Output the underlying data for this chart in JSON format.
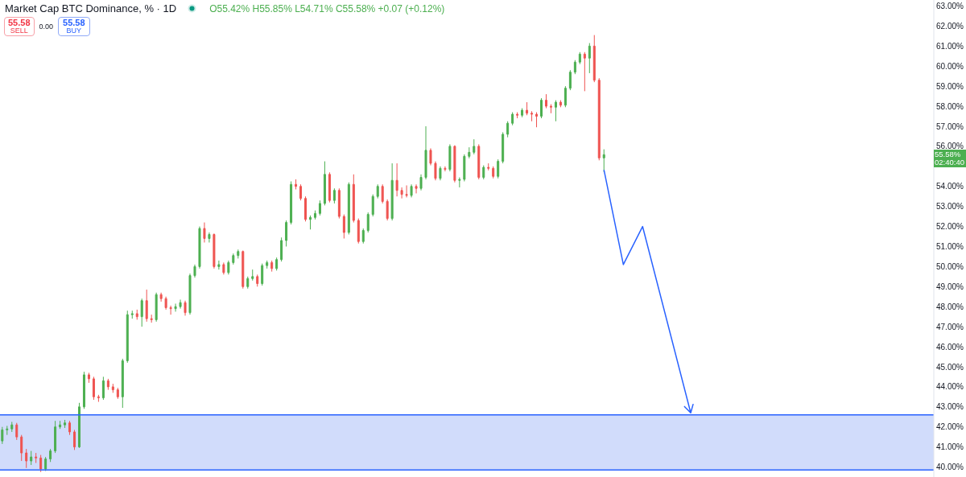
{
  "chart_data": {
    "type": "candlestick",
    "title": "Market Cap BTC Dominance, % · 1D",
    "subtitle": "O55.42% H55.85% L54.71% C55.58% +0.07 (+0.12%)",
    "categories": [
      null,
      null,
      null,
      null,
      null,
      null,
      null,
      null,
      null,
      null,
      null,
      null,
      null,
      null,
      null,
      null,
      null,
      null,
      null,
      null,
      null,
      null,
      null,
      null,
      null,
      null,
      null,
      null,
      null,
      null,
      null,
      null,
      null,
      null,
      null,
      null,
      null,
      null,
      null,
      null,
      null,
      null,
      null,
      null,
      null,
      null,
      null,
      null,
      null,
      null,
      null,
      null,
      null,
      null,
      null,
      null,
      null,
      null,
      null,
      null,
      null,
      null,
      null,
      null,
      null,
      null,
      null,
      null,
      null,
      null,
      null,
      null,
      null,
      null,
      null,
      null,
      null,
      null,
      null,
      null,
      null,
      null,
      null,
      null,
      null,
      null,
      null,
      null,
      null,
      null,
      null,
      null,
      null,
      null,
      null,
      null,
      null,
      null,
      null,
      null,
      null,
      null,
      null,
      null,
      null,
      null,
      null,
      null,
      null,
      null,
      null,
      null,
      null,
      null,
      null,
      null,
      null,
      null,
      null,
      null,
      null,
      null,
      null,
      null,
      null,
      null,
      null,
      null,
      null,
      null,
      null,
      null,
      null,
      null,
      null,
      null,
      null,
      null,
      null,
      null,
      null,
      null,
      null,
      null,
      null,
      null,
      null,
      null,
      null,
      null,
      null,
      null,
      null,
      null,
      null,
      null,
      null,
      null,
      null,
      null,
      null,
      null,
      null,
      null,
      null,
      null,
      null,
      null,
      null,
      null,
      null,
      null,
      null,
      null,
      null,
      null,
      null,
      null,
      null,
      null,
      null,
      null,
      null,
      null,
      null,
      null,
      null,
      null,
      null,
      null,
      null,
      null,
      null,
      null
    ],
    "ohlc": [
      [
        41.3,
        42.0,
        41.15,
        41.85
      ],
      [
        41.85,
        42.05,
        41.6,
        41.9
      ],
      [
        41.9,
        42.25,
        41.75,
        42.1
      ],
      [
        42.1,
        42.2,
        41.35,
        41.5
      ],
      [
        41.5,
        41.6,
        40.3,
        40.7
      ],
      [
        40.7,
        40.9,
        39.95,
        40.3
      ],
      [
        40.3,
        40.8,
        40.1,
        40.5
      ],
      [
        40.5,
        40.7,
        40.2,
        40.45
      ],
      [
        40.45,
        40.6,
        39.75,
        39.9
      ],
      [
        39.9,
        40.5,
        39.8,
        40.4
      ],
      [
        40.4,
        40.9,
        40.25,
        40.8
      ],
      [
        40.8,
        42.3,
        40.7,
        42.0
      ],
      [
        42.0,
        42.3,
        41.9,
        42.1
      ],
      [
        42.1,
        42.35,
        41.95,
        42.2
      ],
      [
        42.2,
        42.3,
        41.6,
        41.75
      ],
      [
        41.75,
        41.85,
        40.85,
        41.0
      ],
      [
        41.0,
        43.2,
        40.95,
        43.0
      ],
      [
        43.0,
        44.75,
        42.9,
        44.6
      ],
      [
        44.6,
        44.7,
        44.2,
        44.4
      ],
      [
        44.4,
        44.5,
        43.35,
        43.5
      ],
      [
        43.5,
        43.6,
        43.25,
        43.45
      ],
      [
        43.45,
        44.5,
        43.35,
        44.3
      ],
      [
        44.3,
        44.4,
        43.85,
        44.0
      ],
      [
        44.0,
        44.15,
        43.7,
        43.85
      ],
      [
        43.85,
        43.95,
        43.4,
        43.5
      ],
      [
        43.5,
        45.4,
        42.95,
        45.3
      ],
      [
        45.3,
        47.8,
        45.2,
        47.6
      ],
      [
        47.6,
        47.8,
        47.4,
        47.65
      ],
      [
        47.65,
        47.85,
        47.35,
        47.5
      ],
      [
        47.5,
        48.4,
        47.0,
        48.3
      ],
      [
        48.3,
        48.85,
        47.25,
        47.4
      ],
      [
        47.4,
        47.6,
        47.2,
        47.35
      ],
      [
        47.35,
        48.7,
        47.25,
        48.6
      ],
      [
        48.6,
        48.7,
        48.25,
        48.4
      ],
      [
        48.4,
        48.5,
        47.85,
        47.95
      ],
      [
        47.95,
        48.05,
        47.6,
        47.9
      ],
      [
        47.9,
        48.15,
        47.75,
        48.0
      ],
      [
        48.0,
        48.35,
        47.9,
        48.2
      ],
      [
        48.2,
        48.3,
        47.55,
        47.7
      ],
      [
        47.7,
        49.65,
        47.6,
        49.55
      ],
      [
        49.55,
        50.1,
        49.45,
        50.0
      ],
      [
        50.0,
        52.0,
        49.9,
        51.9
      ],
      [
        51.9,
        52.2,
        51.2,
        51.4
      ],
      [
        51.4,
        51.7,
        51.2,
        51.6
      ],
      [
        51.6,
        51.65,
        49.9,
        50.0
      ],
      [
        50.0,
        50.3,
        49.85,
        50.1
      ],
      [
        50.1,
        50.2,
        49.6,
        49.7
      ],
      [
        49.7,
        50.3,
        49.6,
        50.2
      ],
      [
        50.2,
        50.65,
        50.1,
        50.55
      ],
      [
        50.55,
        50.85,
        50.4,
        50.75
      ],
      [
        50.75,
        50.8,
        48.9,
        49.0
      ],
      [
        49.0,
        49.5,
        48.9,
        49.4
      ],
      [
        49.4,
        49.85,
        49.3,
        49.5
      ],
      [
        49.5,
        49.6,
        49.0,
        49.15
      ],
      [
        49.15,
        50.15,
        49.05,
        50.05
      ],
      [
        50.05,
        50.3,
        49.9,
        50.2
      ],
      [
        50.2,
        50.3,
        49.75,
        49.9
      ],
      [
        49.9,
        50.45,
        49.8,
        50.35
      ],
      [
        50.35,
        51.45,
        50.25,
        51.3
      ],
      [
        51.3,
        52.3,
        51.0,
        52.2
      ],
      [
        52.2,
        54.25,
        52.1,
        54.1
      ],
      [
        54.1,
        54.35,
        53.85,
        54.0
      ],
      [
        54.0,
        54.1,
        53.3,
        53.4
      ],
      [
        53.4,
        53.5,
        52.25,
        52.35
      ],
      [
        52.35,
        52.55,
        51.85,
        52.45
      ],
      [
        52.45,
        52.8,
        52.35,
        52.65
      ],
      [
        52.65,
        53.3,
        52.55,
        53.15
      ],
      [
        53.15,
        55.25,
        53.05,
        54.6
      ],
      [
        54.6,
        54.7,
        53.2,
        53.3
      ],
      [
        53.3,
        53.9,
        53.15,
        53.8
      ],
      [
        53.8,
        53.9,
        52.4,
        52.5
      ],
      [
        52.5,
        52.6,
        51.4,
        51.7
      ],
      [
        51.7,
        54.2,
        51.6,
        54.1
      ],
      [
        54.1,
        54.6,
        52.2,
        52.3
      ],
      [
        52.3,
        52.4,
        51.15,
        51.25
      ],
      [
        51.25,
        51.9,
        51.15,
        51.8
      ],
      [
        51.8,
        52.7,
        51.7,
        52.6
      ],
      [
        52.6,
        53.6,
        52.5,
        53.5
      ],
      [
        53.5,
        54.1,
        53.4,
        54.0
      ],
      [
        54.0,
        54.1,
        53.15,
        53.25
      ],
      [
        53.25,
        53.35,
        52.3,
        52.4
      ],
      [
        52.4,
        55.15,
        52.3,
        54.3
      ],
      [
        54.3,
        55.15,
        53.5,
        53.8
      ],
      [
        53.8,
        53.95,
        53.4,
        53.6
      ],
      [
        53.6,
        54.05,
        53.45,
        53.55
      ],
      [
        53.55,
        54.1,
        53.45,
        54.0
      ],
      [
        54.0,
        54.1,
        53.65,
        53.9
      ],
      [
        53.9,
        54.6,
        53.8,
        54.45
      ],
      [
        54.45,
        57.0,
        54.35,
        55.8
      ],
      [
        55.8,
        55.9,
        55.05,
        55.15
      ],
      [
        55.15,
        55.25,
        54.3,
        54.4
      ],
      [
        54.4,
        55.0,
        54.3,
        54.9
      ],
      [
        54.9,
        55.0,
        54.75,
        54.85
      ],
      [
        54.85,
        56.1,
        54.75,
        56.0
      ],
      [
        56.0,
        56.05,
        54.2,
        54.3
      ],
      [
        54.3,
        54.45,
        53.95,
        54.35
      ],
      [
        54.35,
        55.6,
        54.25,
        55.5
      ],
      [
        55.5,
        55.95,
        55.4,
        55.7
      ],
      [
        55.7,
        56.35,
        55.6,
        56.0
      ],
      [
        56.0,
        56.1,
        54.35,
        54.45
      ],
      [
        54.45,
        55.05,
        54.35,
        54.95
      ],
      [
        54.95,
        55.15,
        54.8,
        54.9
      ],
      [
        54.9,
        55.0,
        54.4,
        54.5
      ],
      [
        54.5,
        55.35,
        54.4,
        55.25
      ],
      [
        55.25,
        56.7,
        55.15,
        56.6
      ],
      [
        56.6,
        57.25,
        56.45,
        57.15
      ],
      [
        57.15,
        57.7,
        57.05,
        57.6
      ],
      [
        57.6,
        57.7,
        57.4,
        57.55
      ],
      [
        57.55,
        57.9,
        57.45,
        57.8
      ],
      [
        57.8,
        58.2,
        57.55,
        57.65
      ],
      [
        57.65,
        57.75,
        57.25,
        57.6
      ],
      [
        57.6,
        57.7,
        56.95,
        57.5
      ],
      [
        57.5,
        58.4,
        57.4,
        58.3
      ],
      [
        58.3,
        58.6,
        57.9,
        58.0
      ],
      [
        58.0,
        58.1,
        57.65,
        57.95
      ],
      [
        57.95,
        58.3,
        57.25,
        58.2
      ],
      [
        58.2,
        58.3,
        57.95,
        58.05
      ],
      [
        58.05,
        59.0,
        57.95,
        58.9
      ],
      [
        58.9,
        59.8,
        58.8,
        59.7
      ],
      [
        59.7,
        60.3,
        59.6,
        60.2
      ],
      [
        60.2,
        60.7,
        60.1,
        60.6
      ],
      [
        60.6,
        60.7,
        58.75,
        60.4
      ],
      [
        60.4,
        61.15,
        59.65,
        61.0
      ],
      [
        61.0,
        61.55,
        59.2,
        59.3
      ],
      [
        59.3,
        59.4,
        55.3,
        55.42
      ],
      [
        55.42,
        55.85,
        54.71,
        55.58
      ],
      null,
      null,
      null,
      null,
      null,
      null,
      null,
      null,
      null,
      null,
      null,
      null,
      null,
      null,
      null,
      null,
      null,
      null,
      null,
      null,
      null,
      null,
      null,
      null,
      null,
      null,
      null,
      null,
      null,
      null,
      null,
      null,
      null,
      null,
      null,
      null,
      null,
      null,
      null,
      null,
      null,
      null,
      null,
      null,
      null,
      null,
      null,
      null,
      null,
      null,
      null,
      null,
      null,
      null,
      null,
      null,
      null,
      null,
      null,
      null,
      null,
      null,
      null,
      null,
      null,
      null,
      null,
      null
    ],
    "colors": [
      "#4caf50",
      "#4caf50",
      "#4caf50",
      "#ef5350",
      "#ef5350",
      "#ef5350",
      "#4caf50",
      "#ef5350",
      "#ef5350",
      "#4caf50",
      "#4caf50",
      "#4caf50",
      "#4caf50",
      "#4caf50",
      "#ef5350",
      "#ef5350",
      "#4caf50",
      "#4caf50",
      "#ef5350",
      "#ef5350",
      "#ef5350",
      "#4caf50",
      "#ef5350",
      "#ef5350",
      "#ef5350",
      "#4caf50",
      "#4caf50",
      "#4caf50",
      "#ef5350",
      "#4caf50",
      "#ef5350",
      "#ef5350",
      "#4caf50",
      "#ef5350",
      "#ef5350",
      "#ef5350",
      "#4caf50",
      "#4caf50",
      "#ef5350",
      "#4caf50",
      "#4caf50",
      "#4caf50",
      "#ef5350",
      "#4caf50",
      "#ef5350",
      "#4caf50",
      "#ef5350",
      "#4caf50",
      "#4caf50",
      "#4caf50",
      "#ef5350",
      "#4caf50",
      "#4caf50",
      "#ef5350",
      "#4caf50",
      "#4caf50",
      "#ef5350",
      "#4caf50",
      "#4caf50",
      "#4caf50",
      "#4caf50",
      "#ef5350",
      "#ef5350",
      "#ef5350",
      "#4caf50",
      "#4caf50",
      "#4caf50",
      "#4caf50",
      "#ef5350",
      "#4caf50",
      "#ef5350",
      "#ef5350",
      "#4caf50",
      "#ef5350",
      "#ef5350",
      "#4caf50",
      "#4caf50",
      "#4caf50",
      "#4caf50",
      "#ef5350",
      "#ef5350",
      "#4caf50",
      "#ef5350",
      "#ef5350",
      "#ef5350",
      "#4caf50",
      "#ef5350",
      "#4caf50",
      "#4caf50",
      "#ef5350",
      "#ef5350",
      "#4caf50",
      "#ef5350",
      "#4caf50",
      "#ef5350",
      "#4caf50",
      "#4caf50",
      "#4caf50",
      "#4caf50",
      "#ef5350",
      "#4caf50",
      "#ef5350",
      "#ef5350",
      "#4caf50",
      "#4caf50",
      "#4caf50",
      "#4caf50",
      "#ef5350",
      "#4caf50",
      "#ef5350",
      "#ef5350",
      "#ef5350",
      "#4caf50",
      "#ef5350",
      "#ef5350",
      "#4caf50",
      "#ef5350",
      "#4caf50",
      "#4caf50",
      "#4caf50",
      "#4caf50",
      "#ef5350",
      "#4caf50",
      "#ef5350",
      "#ef5350",
      "#4caf50",
      null,
      null,
      null,
      null,
      null,
      null,
      null,
      null,
      null,
      null,
      null,
      null,
      null,
      null,
      null,
      null,
      null,
      null,
      null,
      null,
      null,
      null,
      null,
      null,
      null,
      null,
      null,
      null,
      null,
      null,
      null,
      null,
      null,
      null,
      null,
      null,
      null,
      null,
      null,
      null,
      null,
      null,
      null,
      null,
      null,
      null,
      null,
      null,
      null,
      null,
      null,
      null,
      null,
      null,
      null,
      null,
      null,
      null,
      null,
      null,
      null,
      null,
      null,
      null,
      null,
      null,
      null,
      null
    ],
    "series": [
      {
        "type": "line",
        "color": "#2962ff",
        "values": [
          null,
          null,
          null,
          null,
          null,
          null,
          null,
          null,
          null,
          null,
          null,
          null,
          null,
          null,
          null,
          null,
          null,
          null,
          null,
          null,
          null,
          null,
          null,
          null,
          null,
          null,
          null,
          null,
          null,
          null,
          null,
          null,
          null,
          null,
          null,
          null,
          null,
          null,
          null,
          null,
          null,
          null,
          null,
          null,
          null,
          null,
          null,
          null,
          null,
          null,
          null,
          null,
          null,
          null,
          null,
          null,
          null,
          null,
          null,
          null,
          null,
          null,
          null,
          null,
          null,
          null,
          null,
          null,
          null,
          null,
          null,
          null,
          null,
          null,
          null,
          null,
          null,
          null,
          null,
          null,
          null,
          null,
          null,
          null,
          null,
          null,
          null,
          null,
          null,
          null,
          null,
          null,
          null,
          null,
          null,
          null,
          null,
          null,
          null,
          null,
          null,
          null,
          null,
          null,
          null,
          null,
          null,
          null,
          null,
          null,
          null,
          null,
          null,
          null,
          null,
          null,
          null,
          null,
          null,
          null,
          null,
          null,
          null,
          null,
          null,
          54.8,
          null,
          null,
          null,
          50.1,
          null,
          null,
          null,
          52.0,
          null,
          null,
          null,
          null,
          null,
          null,
          null,
          null,
          null,
          42.7,
          null,
          null,
          null,
          null,
          null,
          null,
          null,
          null,
          null,
          null,
          null,
          null,
          null,
          null,
          null,
          null,
          null,
          null,
          null,
          null,
          null,
          null,
          null,
          null,
          null,
          null,
          null,
          null,
          null,
          null,
          null,
          null,
          null,
          null,
          null,
          null,
          null,
          null,
          null,
          null,
          null,
          null,
          null,
          null,
          null,
          null,
          null,
          null,
          null,
          null
        ]
      }
    ],
    "ylim": [
      39.5,
      63.3
    ],
    "yticks": [
      {
        "value": 40,
        "label": "40.00%"
      },
      {
        "value": 41,
        "label": "41.00%"
      },
      {
        "value": 42,
        "label": "42.00%"
      },
      {
        "value": 43,
        "label": "43.00%"
      },
      {
        "value": 44,
        "label": "44.00%"
      },
      {
        "value": 45,
        "label": "45.00%"
      },
      {
        "value": 46,
        "label": "46.00%"
      },
      {
        "value": 47,
        "label": "47.00%"
      },
      {
        "value": 48,
        "label": "48.00%"
      },
      {
        "value": 49,
        "label": "49.00%"
      },
      {
        "value": 50,
        "label": "50.00%"
      },
      {
        "value": 51,
        "label": "51.00%"
      },
      {
        "value": 52,
        "label": "52.00%"
      },
      {
        "value": 53,
        "label": "53.00%"
      },
      {
        "value": 54,
        "label": "54.00%"
      },
      {
        "value": 56,
        "label": "56.00%"
      },
      {
        "value": 57,
        "label": "57.00%"
      },
      {
        "value": 58,
        "label": "58.00%"
      },
      {
        "value": 59,
        "label": "59.00%"
      },
      {
        "value": 60,
        "label": "60.00%"
      },
      {
        "value": 61,
        "label": "61.00%"
      },
      {
        "value": 62,
        "label": "62.00%"
      },
      {
        "value": 63,
        "label": "63.00%"
      }
    ],
    "tick_labels": "y",
    "bands": [
      {
        "axis": "y",
        "from": 39.85,
        "to": 42.6,
        "color": "#d1dcfb"
      }
    ],
    "ref_lines": [
      {
        "axis": "y",
        "value": 42.6,
        "color": "#2962ff"
      },
      {
        "axis": "y",
        "value": 39.85,
        "color": "#2962ff"
      }
    ],
    "annotations": [
      "55.58",
      "SELL",
      "0.00",
      "55.58",
      "BUY",
      "55.58%",
      "02:40:40"
    ]
  }
}
